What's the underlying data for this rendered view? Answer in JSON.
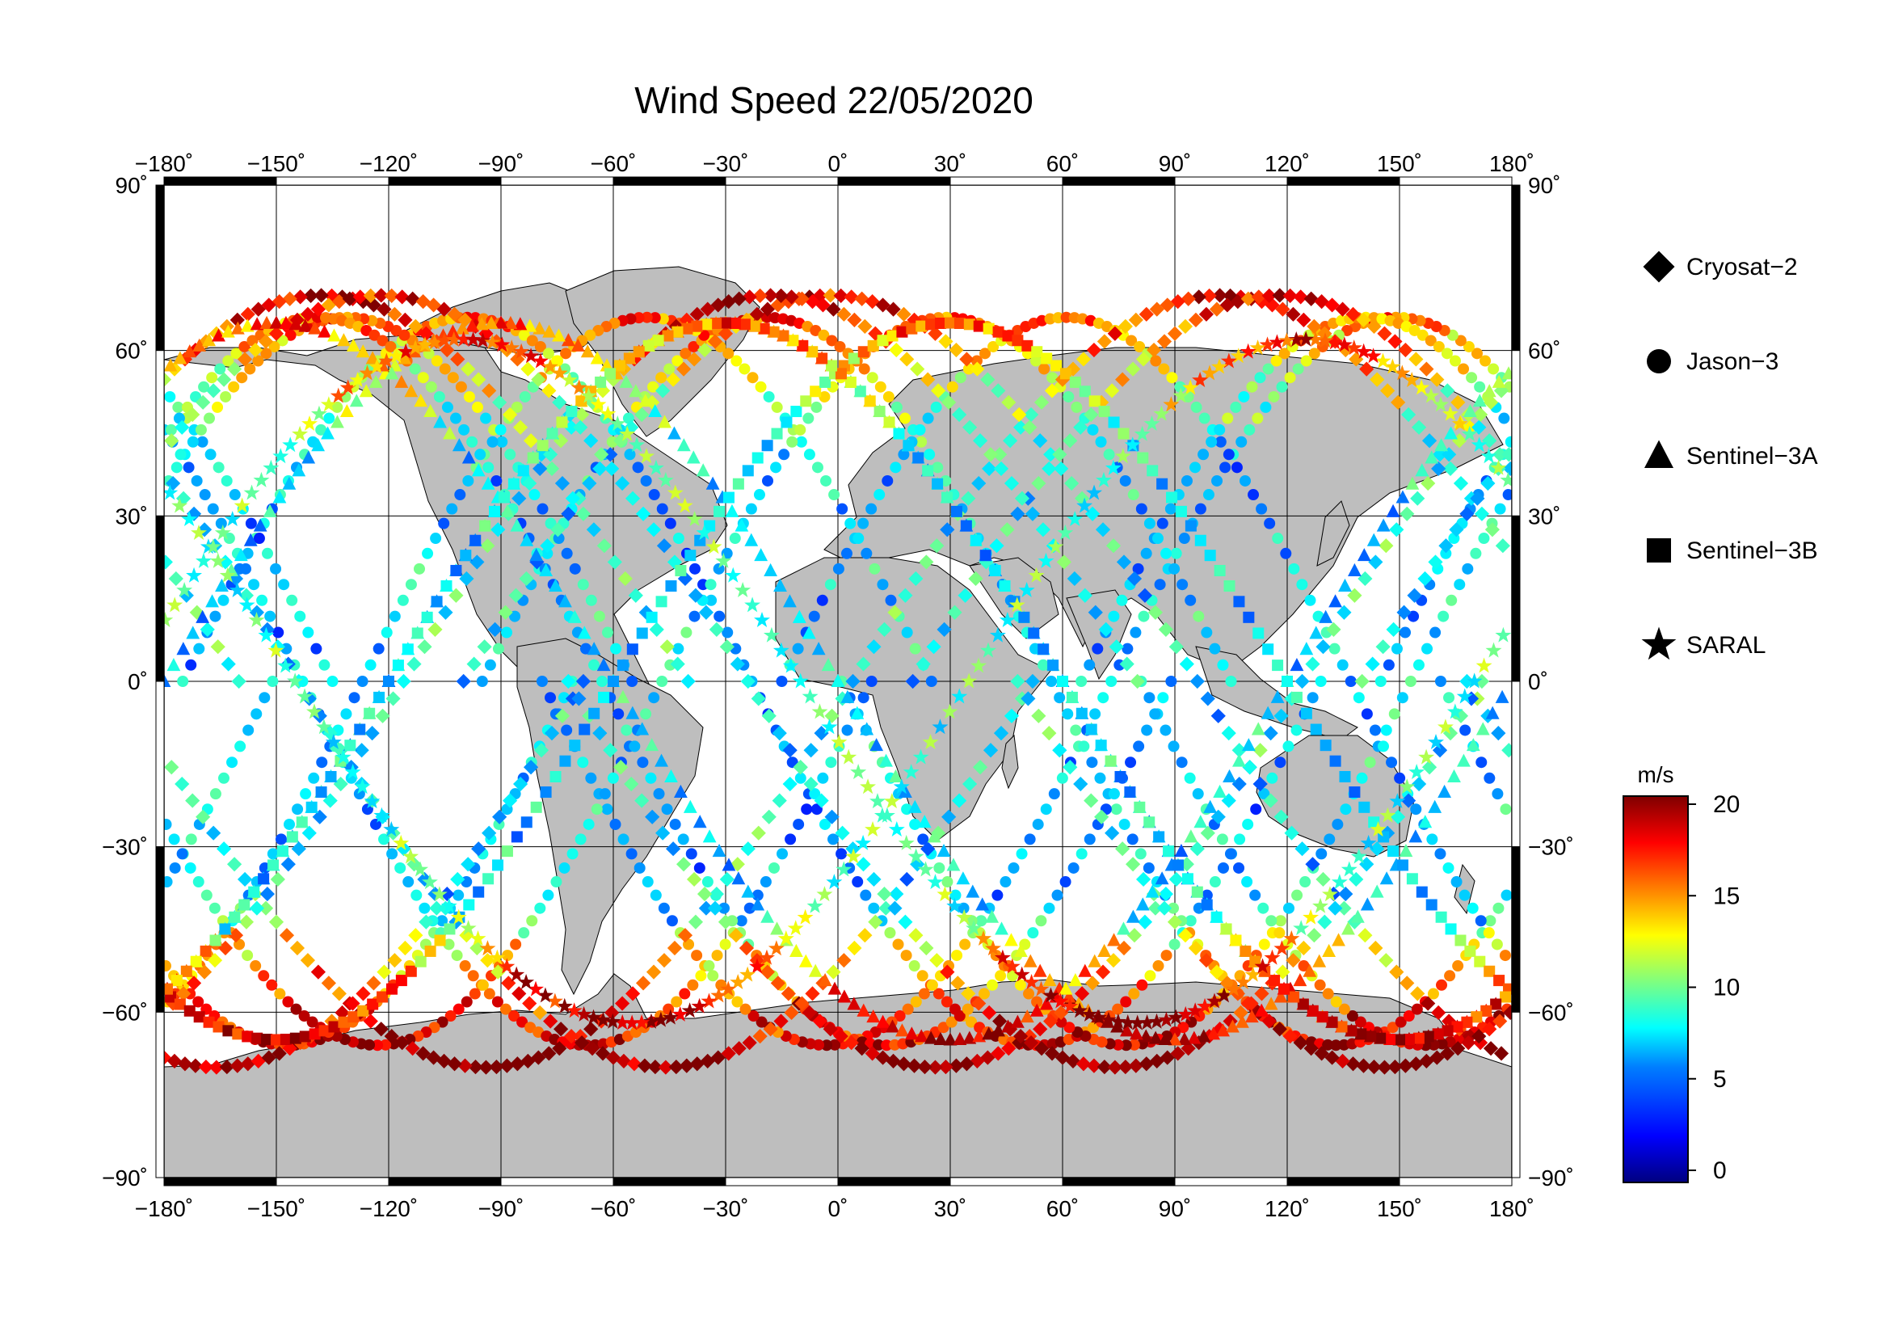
{
  "title": "Wind Speed 22/05/2020",
  "map": {
    "projection": "equirectangular",
    "lon_range": [
      -180,
      180
    ],
    "lat_range": [
      -90,
      90
    ],
    "lon_ticks": [
      "−180˚",
      "−150˚",
      "−120˚",
      "−90˚",
      "−60˚",
      "−30˚",
      "0˚",
      "30˚",
      "60˚",
      "90˚",
      "120˚",
      "150˚",
      "180˚"
    ],
    "lat_ticks_left": [
      "90˚",
      "60˚",
      "30˚",
      "0˚",
      "−30˚",
      "−60˚",
      "−90˚"
    ],
    "lat_ticks_right": [
      "90˚",
      "60˚",
      "30˚",
      "0˚",
      "−30˚",
      "−60˚",
      "−90˚"
    ],
    "grid": true,
    "land_color": "#bebebe",
    "ocean_color": "#ffffff"
  },
  "legend": {
    "position": "right",
    "items": [
      {
        "label": "Cryosat−2",
        "marker": "diamond"
      },
      {
        "label": "Jason−3",
        "marker": "circle"
      },
      {
        "label": "Sentinel−3A",
        "marker": "triangle"
      },
      {
        "label": "Sentinel−3B",
        "marker": "square"
      },
      {
        "label": "SARAL",
        "marker": "star"
      }
    ]
  },
  "colorbar": {
    "unit": "m/s",
    "range": [
      0,
      20
    ],
    "ticks": [
      "20",
      "15",
      "10",
      "5",
      "0"
    ],
    "colormap": [
      "#00007f",
      "#0000ff",
      "#007fff",
      "#00ffff",
      "#7fff7f",
      "#ffff00",
      "#ff7f00",
      "#ff0000",
      "#7f0000"
    ]
  },
  "tracks": [
    {
      "marker": "circle",
      "lon0": -175,
      "dir": 1,
      "incl": 66,
      "lat_min": -66,
      "lat_max": 66,
      "speed_base": 6
    },
    {
      "marker": "circle",
      "lon0": -135,
      "dir": -1,
      "incl": 66,
      "lat_min": -66,
      "lat_max": 66,
      "speed_base": 6
    },
    {
      "marker": "circle",
      "lon0": -95,
      "dir": 1,
      "incl": 66,
      "lat_min": -66,
      "lat_max": 66,
      "speed_base": 7
    },
    {
      "marker": "circle",
      "lon0": -55,
      "dir": -1,
      "incl": 66,
      "lat_min": -66,
      "lat_max": 66,
      "speed_base": 7
    },
    {
      "marker": "circle",
      "lon0": -15,
      "dir": 1,
      "incl": 66,
      "lat_min": -66,
      "lat_max": 66,
      "speed_base": 6
    },
    {
      "marker": "circle",
      "lon0": 25,
      "dir": -1,
      "incl": 66,
      "lat_min": -66,
      "lat_max": 66,
      "speed_base": 7
    },
    {
      "marker": "circle",
      "lon0": 65,
      "dir": 1,
      "incl": 66,
      "lat_min": -66,
      "lat_max": 66,
      "speed_base": 6
    },
    {
      "marker": "circle",
      "lon0": 105,
      "dir": -1,
      "incl": 66,
      "lat_min": -66,
      "lat_max": 66,
      "speed_base": 7
    },
    {
      "marker": "circle",
      "lon0": 145,
      "dir": 1,
      "incl": 66,
      "lat_min": -66,
      "lat_max": 66,
      "speed_base": 6
    },
    {
      "marker": "diamond",
      "lon0": -160,
      "dir": -1,
      "incl": 88,
      "lat_min": -70,
      "lat_max": 70,
      "speed_base": 8
    },
    {
      "marker": "diamond",
      "lon0": -100,
      "dir": 1,
      "incl": 88,
      "lat_min": -70,
      "lat_max": 70,
      "speed_base": 7
    },
    {
      "marker": "diamond",
      "lon0": -40,
      "dir": -1,
      "incl": 88,
      "lat_min": -70,
      "lat_max": 70,
      "speed_base": 8
    },
    {
      "marker": "diamond",
      "lon0": 20,
      "dir": 1,
      "incl": 88,
      "lat_min": -70,
      "lat_max": 70,
      "speed_base": 7
    },
    {
      "marker": "diamond",
      "lon0": 80,
      "dir": -1,
      "incl": 88,
      "lat_min": -70,
      "lat_max": 70,
      "speed_base": 8
    },
    {
      "marker": "diamond",
      "lon0": 140,
      "dir": 1,
      "incl": 88,
      "lat_min": -70,
      "lat_max": 70,
      "speed_base": 7
    },
    {
      "marker": "triangle",
      "lon0": -120,
      "dir": 1,
      "incl": 80,
      "lat_min": -65,
      "lat_max": 65,
      "speed_base": 7
    },
    {
      "marker": "triangle",
      "lon0": 0,
      "dir": -1,
      "incl": 80,
      "lat_min": -65,
      "lat_max": 65,
      "speed_base": 7
    },
    {
      "marker": "triangle",
      "lon0": 120,
      "dir": 1,
      "incl": 80,
      "lat_min": -65,
      "lat_max": 65,
      "speed_base": 7
    },
    {
      "marker": "square",
      "lon0": -60,
      "dir": 1,
      "incl": 80,
      "lat_min": -65,
      "lat_max": 65,
      "speed_base": 7
    },
    {
      "marker": "square",
      "lon0": 60,
      "dir": -1,
      "incl": 80,
      "lat_min": -65,
      "lat_max": 65,
      "speed_base": 7
    },
    {
      "marker": "star",
      "lon0": -145,
      "dir": -1,
      "incl": 80,
      "lat_min": -62,
      "lat_max": 62,
      "speed_base": 9
    },
    {
      "marker": "star",
      "lon0": 170,
      "dir": 1,
      "incl": 80,
      "lat_min": -62,
      "lat_max": 62,
      "speed_base": 9
    }
  ]
}
